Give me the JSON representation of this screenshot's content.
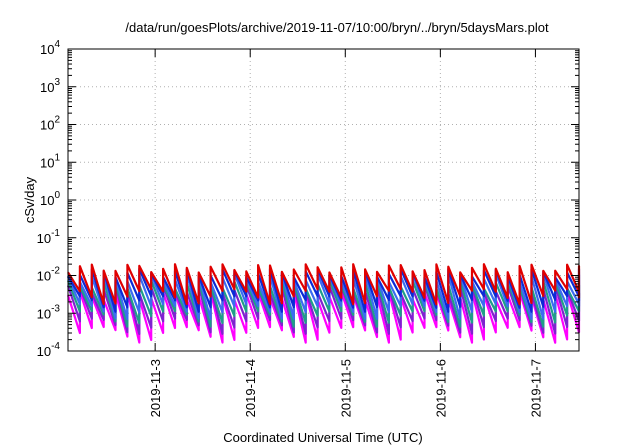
{
  "chart_data": {
    "type": "line",
    "title": "/data/run/goesPlots/archive/2019-11-07/10:00/bryn/../bryn/5daysMars.plot",
    "xlabel": "Coordinated Universal Time (UTC)",
    "ylabel": "cSv/day",
    "yscale": "log",
    "ylim": [
      0.0001,
      10000
    ],
    "xlim": [
      "2019-11-02T02:00",
      "2019-11-07T11:00"
    ],
    "grid": true,
    "legend": "none",
    "x_tick_labels": [
      "2019-11-3",
      "2019-11-4",
      "2019-11-5",
      "2019-11-6",
      "2019-11-7"
    ],
    "x_ticks": [
      "2019-11-03T00:00",
      "2019-11-04T00:00",
      "2019-11-05T00:00",
      "2019-11-06T00:00",
      "2019-11-07T00:00"
    ],
    "y_ticks": [
      {
        "value": 0.0001,
        "base": "10",
        "exp": "-4"
      },
      {
        "value": 0.001,
        "base": "10",
        "exp": "-3"
      },
      {
        "value": 0.01,
        "base": "10",
        "exp": "-2"
      },
      {
        "value": 0.1,
        "base": "10",
        "exp": "-1"
      },
      {
        "value": 1,
        "base": "10",
        "exp": "0"
      },
      {
        "value": 10,
        "base": "10",
        "exp": "1"
      },
      {
        "value": 100,
        "base": "10",
        "exp": "2"
      },
      {
        "value": 1000,
        "base": "10",
        "exp": "3"
      },
      {
        "value": 10000,
        "base": "10",
        "exp": "4"
      }
    ],
    "series": [
      {
        "color": "#ff00ff",
        "peak": 0.003,
        "trough": 0.0003
      },
      {
        "color": "#7f22cf",
        "peak": 0.0045,
        "trough": 0.0005
      },
      {
        "color": "#1f9e89",
        "peak": 0.006,
        "trough": 0.0008
      },
      {
        "color": "#3b6cf0",
        "peak": 0.009,
        "trough": 0.0012
      },
      {
        "color": "#0b2ad6",
        "peak": 0.012,
        "trough": 0.002
      },
      {
        "color": "#e00000",
        "peak": 0.016,
        "trough": 0.003
      }
    ],
    "cycle_hours": 3.0,
    "colors": {
      "frame": "#000000",
      "grid": "#b0b0b0"
    }
  }
}
